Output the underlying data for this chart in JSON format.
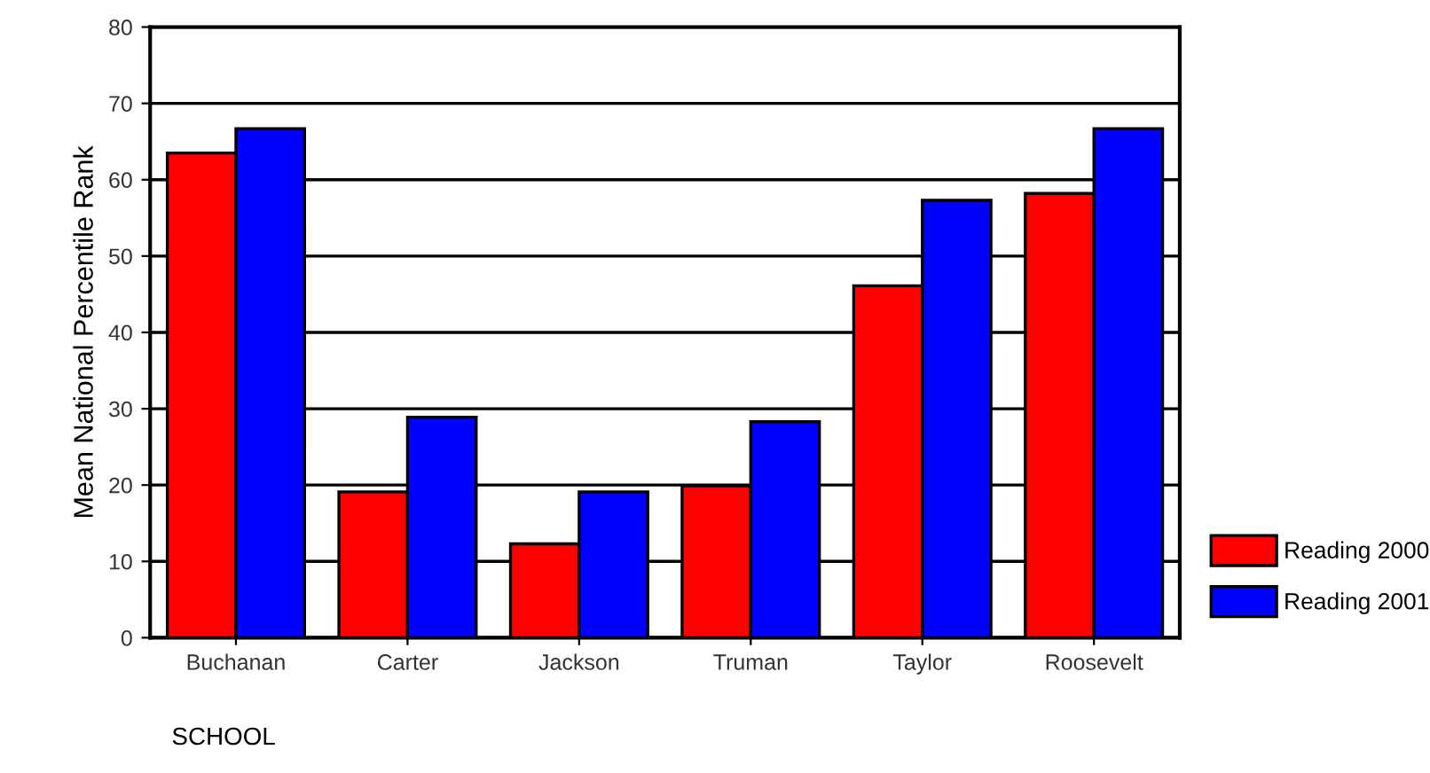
{
  "chart_data": {
    "type": "bar",
    "xlabel": "SCHOOL",
    "ylabel": "Mean National Percentile Rank",
    "categories": [
      "Buchanan",
      "Carter",
      "Jackson",
      "Truman",
      "Taylor",
      "Roosevelt"
    ],
    "series": [
      {
        "name": "Reading 2000",
        "color": "#ff0000",
        "values": [
          63.5,
          19.1,
          12.3,
          19.9,
          46.1,
          58.2
        ]
      },
      {
        "name": "Reading 2001",
        "color": "#0000ff",
        "values": [
          66.7,
          28.9,
          19.1,
          28.3,
          57.3,
          66.7
        ]
      }
    ],
    "ylim": [
      0,
      80
    ],
    "yticks": [
      0,
      10,
      20,
      30,
      40,
      50,
      60,
      70,
      80
    ],
    "grid": "y",
    "legend": "right"
  }
}
